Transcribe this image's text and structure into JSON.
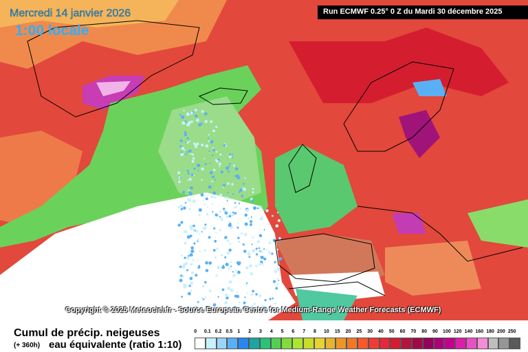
{
  "header": {
    "date": "Mercredi 14 janvier 2026",
    "time": "1:00 locale",
    "run": "Run ECMWF 0.25° 0 Z du Mardi 30 décembre 2025"
  },
  "copyright": "Copyright © 2025 Meteociel.fr - Source European Centre for Medium-Range Weather Forecasts (ECMWF)",
  "legend": {
    "title": "Cumul de précip. neigeuses",
    "period": "(+ 360h)",
    "subtitle": "eau équivalente (ratio 1:10)",
    "labels": [
      "0",
      "0.1",
      "0.2",
      "0.5",
      "1",
      "2",
      "3",
      "4",
      "5",
      "6",
      "7",
      "8",
      "10",
      "15",
      "20",
      "25",
      "30",
      "40",
      "50",
      "60",
      "70",
      "80",
      "90",
      "100",
      "120",
      "140",
      "160",
      "180",
      "200",
      "250"
    ],
    "colors": [
      "#ffffff",
      "#c8f0ff",
      "#9ad6fa",
      "#5ab0f5",
      "#2a86f0",
      "#1ea5a0",
      "#28c378",
      "#50d250",
      "#82dc3c",
      "#aae632",
      "#c8dc28",
      "#e6d232",
      "#e6b42d",
      "#eb9628",
      "#f07828",
      "#f55a2d",
      "#f03c32",
      "#e6283c",
      "#d21e32",
      "#b4143c",
      "#a00a46",
      "#96005a",
      "#aa0078",
      "#c3008c",
      "#dc1eaa",
      "#eb50c3",
      "#f58cd7",
      "#bebebe",
      "#969696",
      "#5a5a5a"
    ]
  }
}
